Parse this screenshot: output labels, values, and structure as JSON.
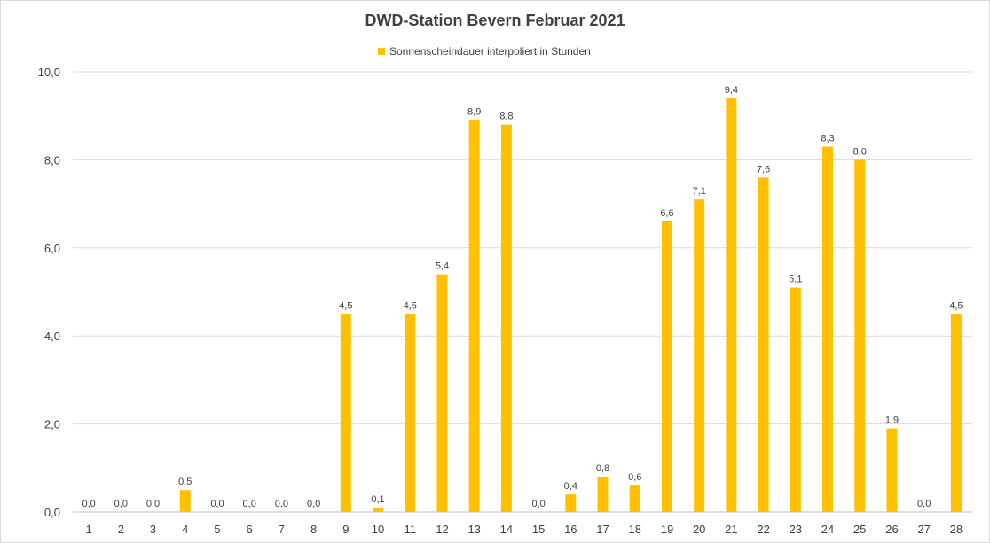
{
  "chart_data": {
    "type": "bar",
    "title": "DWD-Station  Bevern Februar 2021",
    "legend_position": "top",
    "grid": true,
    "categories": [
      "1",
      "2",
      "3",
      "4",
      "5",
      "6",
      "7",
      "8",
      "9",
      "10",
      "11",
      "12",
      "13",
      "14",
      "15",
      "16",
      "17",
      "18",
      "19",
      "20",
      "21",
      "22",
      "23",
      "24",
      "25",
      "26",
      "27",
      "28"
    ],
    "series": [
      {
        "name": "Sonnenscheindauer interpoliert in Stunden",
        "color": "#FFC000",
        "values": [
          0.0,
          0.0,
          0.0,
          0.5,
          0.0,
          0.0,
          0.0,
          0.0,
          4.5,
          0.1,
          4.5,
          5.4,
          8.9,
          8.8,
          0.0,
          0.4,
          0.8,
          0.6,
          6.6,
          7.1,
          9.4,
          7.6,
          5.1,
          8.3,
          8.0,
          1.9,
          0.0,
          4.5
        ],
        "labels": [
          "0,0",
          "0,0",
          "0,0",
          "0,5",
          "0,0",
          "0,0",
          "0,0",
          "0,0",
          "4,5",
          "0,1",
          "4,5",
          "5,4",
          "8,9",
          "8,8",
          "0,0",
          "0,4",
          "0,8",
          "0,6",
          "6,6",
          "7,1",
          "9,4",
          "7,6",
          "5,1",
          "8,3",
          "8,0",
          "1,9",
          "0,0",
          "4,5"
        ]
      }
    ],
    "ylim": [
      0,
      10
    ],
    "yticks": [
      "0,0",
      "2,0",
      "4,0",
      "6,0",
      "8,0",
      "10,0"
    ],
    "ytick_values": [
      0,
      2,
      4,
      6,
      8,
      10
    ]
  }
}
